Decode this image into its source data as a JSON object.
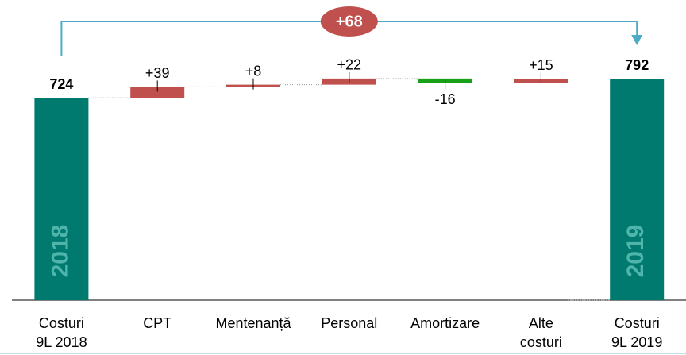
{
  "chart_data": {
    "type": "waterfall",
    "categories": [
      [
        "Costuri",
        "9L 2018"
      ],
      [
        "CPT"
      ],
      [
        "Mentenanță"
      ],
      [
        "Personal"
      ],
      [
        "Amortizare"
      ],
      [
        "Alte",
        "costuri"
      ],
      [
        "Costuri",
        "9L 2019"
      ]
    ],
    "measure": [
      "total",
      "relative",
      "relative",
      "relative",
      "relative",
      "relative",
      "total"
    ],
    "values": [
      724,
      39,
      8,
      22,
      -16,
      15,
      792
    ],
    "value_labels": [
      "724",
      "+39",
      "+8",
      "+22",
      "-16",
      "+15",
      "792"
    ],
    "inner_labels": [
      "2018",
      null,
      null,
      null,
      null,
      null,
      "2019"
    ],
    "difference": {
      "value": 68,
      "label": "+68"
    },
    "colors": {
      "total": "#00796e",
      "increase": "#c0504d",
      "decrease": "#19a019",
      "bracket": "#4bacc6"
    },
    "ylim": [
      0,
      1000
    ]
  }
}
